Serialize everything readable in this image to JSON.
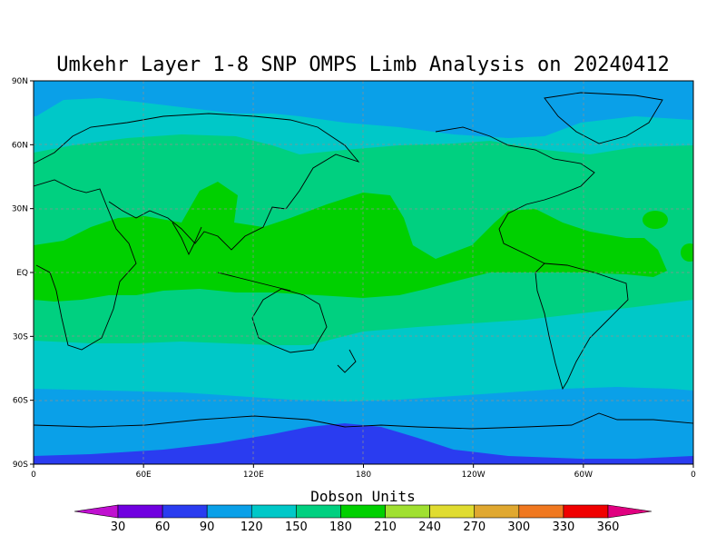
{
  "title": "Umkehr Layer 1-8 SNP OMPS Limb Analysis on 20240412",
  "map": {
    "type": "contour-map",
    "projection": "equirectangular",
    "lon_range": [
      0,
      360
    ],
    "lat_range": [
      -90,
      90
    ],
    "x_ticks": [
      "0",
      "60E",
      "120E",
      "180",
      "120W",
      "60W",
      "0"
    ],
    "y_ticks": [
      "90N",
      "60N",
      "30N",
      "EQ",
      "30S",
      "60S",
      "90S"
    ],
    "grid": "dashed"
  },
  "colorbar": {
    "title": "Dobson Units",
    "levels": [
      "30",
      "60",
      "90",
      "120",
      "150",
      "180",
      "210",
      "240",
      "270",
      "300",
      "330",
      "360"
    ],
    "colors": [
      "#c010d0",
      "#7000e0",
      "#2a3cf0",
      "#0aa0e8",
      "#00c8c8",
      "#00d080",
      "#00d000",
      "#a0e030",
      "#e0dc30",
      "#e0a830",
      "#f07820",
      "#f00000",
      "#e00080"
    ]
  },
  "colors": {
    "band_90_120": "#0aa0e8",
    "band_120_150": "#00c8c8",
    "band_150_180": "#00d080",
    "band_180_210": "#00d000",
    "band_60_90": "#2a3cf0"
  }
}
